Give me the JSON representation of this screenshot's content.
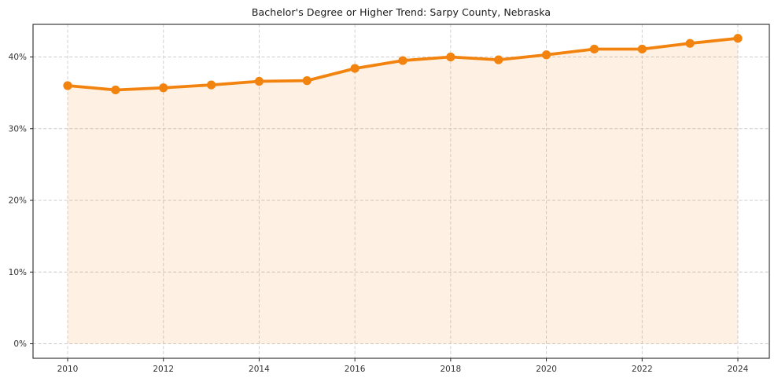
{
  "chart_data": {
    "type": "area",
    "title": "Bachelor's Degree or Higher Trend: Sarpy County, Nebraska",
    "x": [
      2010,
      2011,
      2012,
      2013,
      2014,
      2015,
      2016,
      2017,
      2018,
      2019,
      2020,
      2021,
      2022,
      2023,
      2024
    ],
    "values": [
      36.0,
      35.4,
      35.7,
      36.1,
      36.6,
      36.7,
      38.4,
      39.5,
      40.0,
      39.6,
      40.3,
      41.1,
      41.1,
      41.9,
      42.6
    ],
    "xlabel": "",
    "ylabel": "",
    "ylim": [
      -2.1,
      44.6
    ],
    "y_ticks": [
      {
        "value": 0,
        "label": "0%"
      },
      {
        "value": 10,
        "label": "10%"
      },
      {
        "value": 20,
        "label": "20%"
      },
      {
        "value": 30,
        "label": "30%"
      },
      {
        "value": 40,
        "label": "40%"
      }
    ],
    "x_ticks": [
      {
        "value": 2010,
        "label": "2010"
      },
      {
        "value": 2012,
        "label": "2012"
      },
      {
        "value": 2014,
        "label": "2014"
      },
      {
        "value": 2016,
        "label": "2016"
      },
      {
        "value": 2018,
        "label": "2018"
      },
      {
        "value": 2020,
        "label": "2020"
      },
      {
        "value": 2022,
        "label": "2022"
      },
      {
        "value": 2024,
        "label": "2024"
      }
    ],
    "grid": "dashed",
    "legend": "none",
    "colors": {
      "line": "#f2830f",
      "marker": "#f2830f",
      "area_fill": "rgba(243,131,15,0.12)",
      "gridline": "#cccccc",
      "spine": "#262626",
      "tick_label": "#333333",
      "background": "#ffffff"
    }
  }
}
